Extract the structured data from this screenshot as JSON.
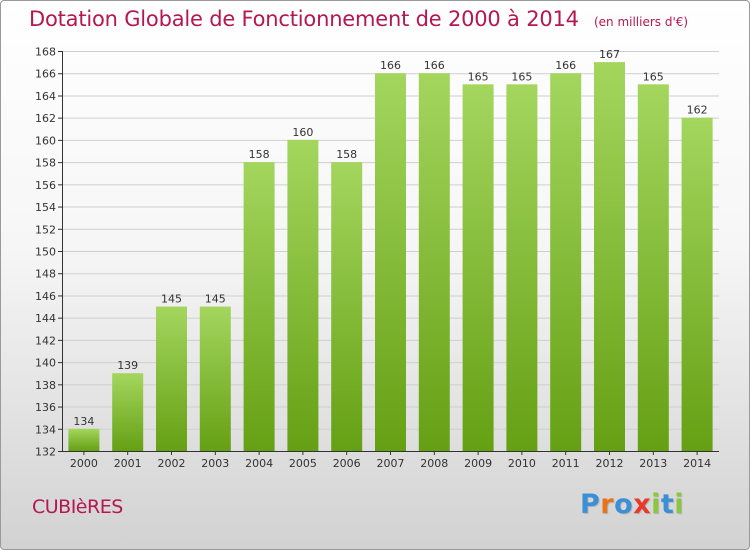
{
  "title": "Dotation Globale de Fonctionnement de 2000 à 2014",
  "unit_note": "(en milliers d'€)",
  "place": "CUBIèRES",
  "logo": {
    "text": "Proxiti",
    "letters": [
      {
        "ch": "P",
        "color": "#3a8fd6"
      },
      {
        "ch": "r",
        "color": "#e8731a"
      },
      {
        "ch": "o",
        "color": "#3a8fd6"
      },
      {
        "ch": "x",
        "color": "#e83a2a"
      },
      {
        "ch": "i",
        "color": "#8cc63f"
      },
      {
        "ch": "t",
        "color": "#3a8fd6"
      },
      {
        "ch": "i",
        "color": "#8cc63f"
      }
    ]
  },
  "colors": {
    "title": "#b5174f",
    "bar_top": "#a4d65e",
    "bar_bottom": "#65a014",
    "axis": "#333333",
    "grid": "#cfcfcf"
  },
  "chart_data": {
    "type": "bar",
    "title": "Dotation Globale de Fonctionnement de 2000 à 2014",
    "xlabel": "",
    "ylabel": "",
    "categories": [
      "2000",
      "2001",
      "2002",
      "2003",
      "2004",
      "2005",
      "2006",
      "2007",
      "2008",
      "2009",
      "2010",
      "2011",
      "2012",
      "2013",
      "2014"
    ],
    "values": [
      134,
      139,
      145,
      145,
      158,
      160,
      158,
      166,
      166,
      165,
      165,
      166,
      167,
      165,
      162
    ],
    "ylim": [
      132,
      168
    ],
    "yticks": [
      132,
      134,
      136,
      138,
      140,
      142,
      144,
      146,
      148,
      150,
      152,
      154,
      156,
      158,
      160,
      162,
      164,
      166,
      168
    ],
    "grid": true,
    "data_labels": true
  }
}
